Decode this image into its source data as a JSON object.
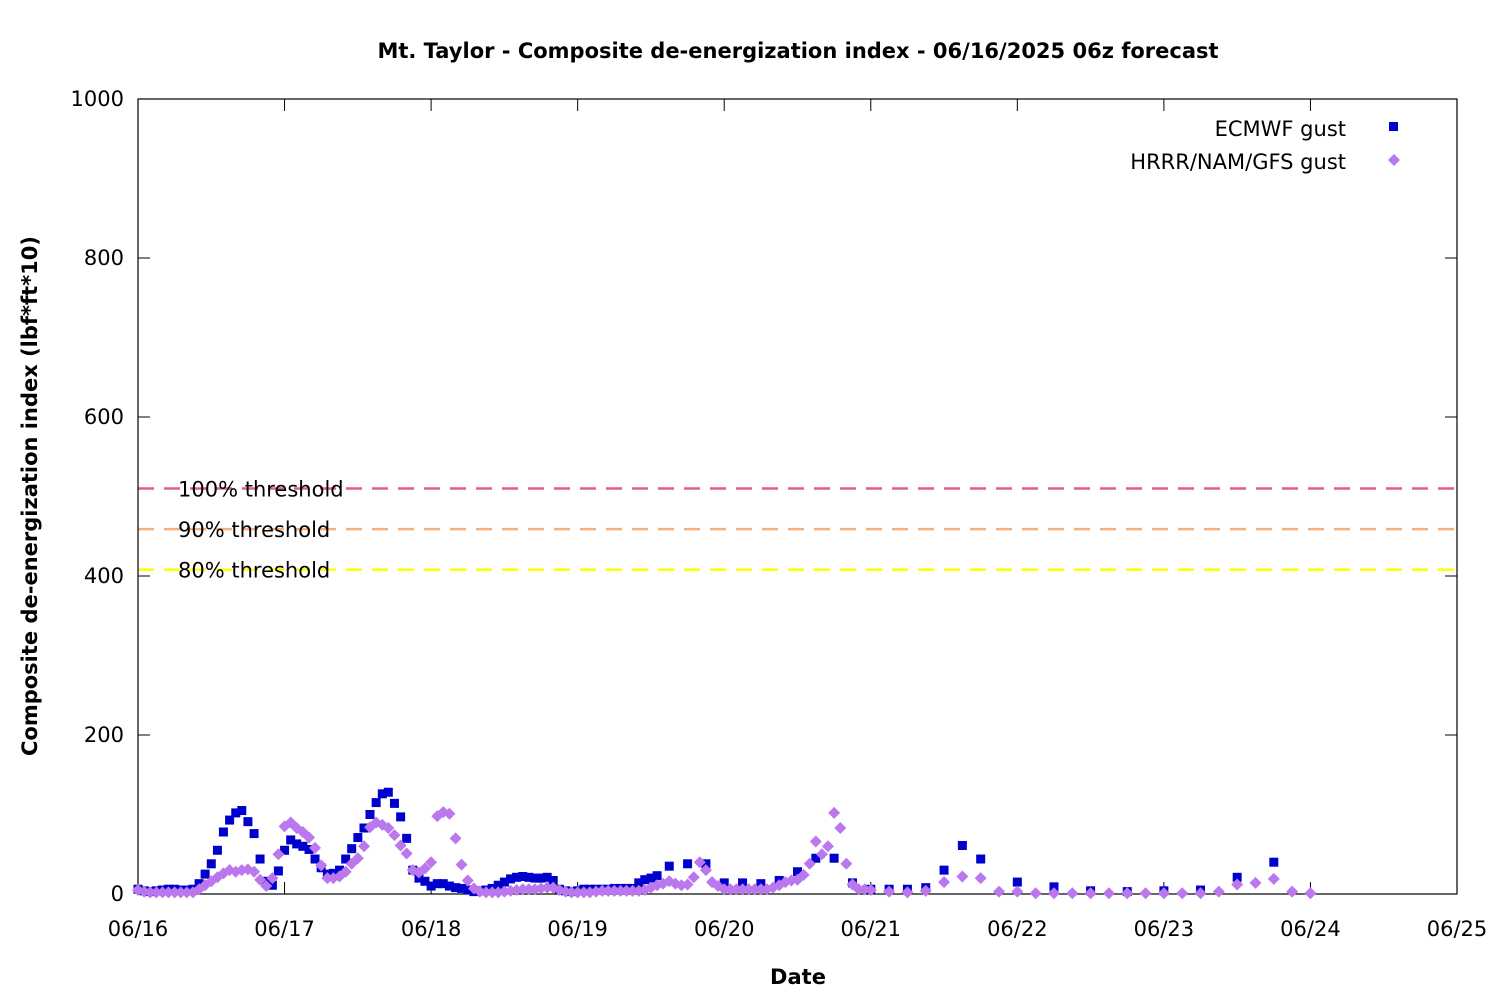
{
  "chart_data": {
    "type": "scatter",
    "title": "Mt. Taylor - Composite de-energization index - 06/16/2025 06z forecast",
    "xlabel": "Date",
    "ylabel": "Composite de-energization index (lbf*ft*10)",
    "x_unit": "day",
    "xlim": [
      0,
      9
    ],
    "ylim": [
      0,
      1000
    ],
    "x_ticks": [
      {
        "value": 0,
        "label": "06/16"
      },
      {
        "value": 1,
        "label": "06/17"
      },
      {
        "value": 2,
        "label": "06/18"
      },
      {
        "value": 3,
        "label": "06/19"
      },
      {
        "value": 4,
        "label": "06/20"
      },
      {
        "value": 5,
        "label": "06/21"
      },
      {
        "value": 6,
        "label": "06/22"
      },
      {
        "value": 7,
        "label": "06/23"
      },
      {
        "value": 8,
        "label": "06/24"
      },
      {
        "value": 9,
        "label": "06/25"
      }
    ],
    "y_ticks": [
      0,
      200,
      400,
      600,
      800,
      1000
    ],
    "grid": false,
    "legend_position": "top-right",
    "thresholds": [
      {
        "name": "100% threshold",
        "value": 510,
        "color": "#e06080"
      },
      {
        "name": "90% threshold",
        "value": 459,
        "color": "#f4b080"
      },
      {
        "name": "80% threshold",
        "value": 408,
        "color": "#ffff00"
      }
    ],
    "series": [
      {
        "name": "ECMWF gust",
        "marker": "square",
        "color": "#0000cc",
        "points": [
          [
            0.0,
            6
          ],
          [
            0.042,
            4
          ],
          [
            0.083,
            3
          ],
          [
            0.125,
            4
          ],
          [
            0.167,
            5
          ],
          [
            0.208,
            6
          ],
          [
            0.25,
            6
          ],
          [
            0.292,
            5
          ],
          [
            0.333,
            5
          ],
          [
            0.375,
            6
          ],
          [
            0.417,
            13
          ],
          [
            0.458,
            25
          ],
          [
            0.5,
            38
          ],
          [
            0.542,
            55
          ],
          [
            0.583,
            78
          ],
          [
            0.625,
            93
          ],
          [
            0.667,
            102
          ],
          [
            0.708,
            105
          ],
          [
            0.75,
            91
          ],
          [
            0.792,
            76
          ],
          [
            0.833,
            44
          ],
          [
            0.875,
            16
          ],
          [
            0.917,
            11
          ],
          [
            0.958,
            29
          ],
          [
            1.0,
            55
          ],
          [
            1.042,
            68
          ],
          [
            1.083,
            63
          ],
          [
            1.125,
            60
          ],
          [
            1.167,
            56
          ],
          [
            1.208,
            44
          ],
          [
            1.25,
            33
          ],
          [
            1.292,
            25
          ],
          [
            1.333,
            26
          ],
          [
            1.375,
            30
          ],
          [
            1.417,
            44
          ],
          [
            1.458,
            57
          ],
          [
            1.5,
            71
          ],
          [
            1.542,
            83
          ],
          [
            1.583,
            100
          ],
          [
            1.625,
            115
          ],
          [
            1.667,
            126
          ],
          [
            1.708,
            128
          ],
          [
            1.75,
            114
          ],
          [
            1.792,
            97
          ],
          [
            1.833,
            70
          ],
          [
            1.875,
            30
          ],
          [
            1.917,
            20
          ],
          [
            1.958,
            16
          ],
          [
            2.0,
            10
          ],
          [
            2.042,
            13
          ],
          [
            2.083,
            13
          ],
          [
            2.125,
            10
          ],
          [
            2.167,
            8
          ],
          [
            2.208,
            7
          ],
          [
            2.25,
            5
          ],
          [
            2.292,
            3
          ],
          [
            2.333,
            4
          ],
          [
            2.375,
            5
          ],
          [
            2.417,
            7
          ],
          [
            2.458,
            11
          ],
          [
            2.5,
            15
          ],
          [
            2.542,
            19
          ],
          [
            2.583,
            21
          ],
          [
            2.625,
            22
          ],
          [
            2.667,
            21
          ],
          [
            2.708,
            20
          ],
          [
            2.75,
            20
          ],
          [
            2.792,
            21
          ],
          [
            2.833,
            17
          ],
          [
            2.875,
            6
          ],
          [
            2.917,
            4
          ],
          [
            2.958,
            3
          ],
          [
            3.0,
            4
          ],
          [
            3.042,
            6
          ],
          [
            3.083,
            6
          ],
          [
            3.125,
            6
          ],
          [
            3.167,
            6
          ],
          [
            3.208,
            6
          ],
          [
            3.25,
            7
          ],
          [
            3.292,
            7
          ],
          [
            3.333,
            7
          ],
          [
            3.375,
            7
          ],
          [
            3.417,
            14
          ],
          [
            3.458,
            18
          ],
          [
            3.5,
            20
          ],
          [
            3.542,
            23
          ],
          [
            3.625,
            35
          ],
          [
            3.75,
            38
          ],
          [
            3.875,
            38
          ],
          [
            4.0,
            14
          ],
          [
            4.125,
            14
          ],
          [
            4.25,
            13
          ],
          [
            4.375,
            17
          ],
          [
            4.5,
            28
          ],
          [
            4.625,
            45
          ],
          [
            4.75,
            45
          ],
          [
            4.875,
            14
          ],
          [
            5.0,
            6
          ],
          [
            5.125,
            6
          ],
          [
            5.25,
            6
          ],
          [
            5.375,
            8
          ],
          [
            5.5,
            30
          ],
          [
            5.625,
            61
          ],
          [
            5.75,
            44
          ],
          [
            6.0,
            15
          ],
          [
            6.25,
            9
          ],
          [
            6.5,
            4
          ],
          [
            6.75,
            3
          ],
          [
            7.0,
            4
          ],
          [
            7.25,
            5
          ],
          [
            7.5,
            21
          ],
          [
            7.75,
            40
          ]
        ]
      },
      {
        "name": "HRRR/NAM/GFS gust",
        "marker": "diamond",
        "color": "#bb77ee",
        "points": [
          [
            0.0,
            5
          ],
          [
            0.042,
            3
          ],
          [
            0.083,
            2
          ],
          [
            0.125,
            2
          ],
          [
            0.167,
            2
          ],
          [
            0.208,
            2
          ],
          [
            0.25,
            2
          ],
          [
            0.292,
            2
          ],
          [
            0.333,
            2
          ],
          [
            0.375,
            2
          ],
          [
            0.417,
            6
          ],
          [
            0.458,
            11
          ],
          [
            0.5,
            16
          ],
          [
            0.542,
            21
          ],
          [
            0.583,
            26
          ],
          [
            0.625,
            30
          ],
          [
            0.667,
            28
          ],
          [
            0.708,
            30
          ],
          [
            0.75,
            31
          ],
          [
            0.792,
            28
          ],
          [
            0.833,
            18
          ],
          [
            0.875,
            10
          ],
          [
            0.917,
            20
          ],
          [
            0.958,
            50
          ],
          [
            1.0,
            85
          ],
          [
            1.042,
            90
          ],
          [
            1.083,
            83
          ],
          [
            1.125,
            78
          ],
          [
            1.167,
            71
          ],
          [
            1.208,
            58
          ],
          [
            1.25,
            36
          ],
          [
            1.292,
            20
          ],
          [
            1.333,
            20
          ],
          [
            1.375,
            22
          ],
          [
            1.417,
            28
          ],
          [
            1.458,
            38
          ],
          [
            1.5,
            45
          ],
          [
            1.542,
            60
          ],
          [
            1.583,
            84
          ],
          [
            1.625,
            90
          ],
          [
            1.667,
            87
          ],
          [
            1.708,
            83
          ],
          [
            1.75,
            74
          ],
          [
            1.792,
            61
          ],
          [
            1.833,
            51
          ],
          [
            1.875,
            30
          ],
          [
            1.917,
            27
          ],
          [
            1.958,
            32
          ],
          [
            2.0,
            40
          ],
          [
            2.042,
            98
          ],
          [
            2.083,
            103
          ],
          [
            2.125,
            101
          ],
          [
            2.167,
            70
          ],
          [
            2.208,
            37
          ],
          [
            2.25,
            17
          ],
          [
            2.292,
            7
          ],
          [
            2.333,
            3
          ],
          [
            2.375,
            2
          ],
          [
            2.417,
            2
          ],
          [
            2.458,
            2
          ],
          [
            2.5,
            3
          ],
          [
            2.542,
            4
          ],
          [
            2.583,
            5
          ],
          [
            2.625,
            6
          ],
          [
            2.667,
            6
          ],
          [
            2.708,
            6
          ],
          [
            2.75,
            7
          ],
          [
            2.792,
            8
          ],
          [
            2.833,
            8
          ],
          [
            2.875,
            5
          ],
          [
            2.917,
            3
          ],
          [
            2.958,
            2
          ],
          [
            3.0,
            2
          ],
          [
            3.042,
            2
          ],
          [
            3.083,
            2
          ],
          [
            3.125,
            3
          ],
          [
            3.167,
            4
          ],
          [
            3.208,
            4
          ],
          [
            3.25,
            4
          ],
          [
            3.292,
            4
          ],
          [
            3.333,
            4
          ],
          [
            3.375,
            4
          ],
          [
            3.417,
            4
          ],
          [
            3.458,
            5
          ],
          [
            3.5,
            8
          ],
          [
            3.542,
            11
          ],
          [
            3.583,
            13
          ],
          [
            3.625,
            16
          ],
          [
            3.667,
            13
          ],
          [
            3.708,
            11
          ],
          [
            3.75,
            12
          ],
          [
            3.792,
            21
          ],
          [
            3.833,
            40
          ],
          [
            3.875,
            30
          ],
          [
            3.917,
            15
          ],
          [
            3.958,
            10
          ],
          [
            4.0,
            6
          ],
          [
            4.042,
            6
          ],
          [
            4.083,
            6
          ],
          [
            4.125,
            6
          ],
          [
            4.167,
            6
          ],
          [
            4.208,
            6
          ],
          [
            4.25,
            6
          ],
          [
            4.292,
            6
          ],
          [
            4.333,
            8
          ],
          [
            4.375,
            11
          ],
          [
            4.417,
            15
          ],
          [
            4.458,
            17
          ],
          [
            4.5,
            18
          ],
          [
            4.542,
            24
          ],
          [
            4.583,
            38
          ],
          [
            4.625,
            66
          ],
          [
            4.667,
            50
          ],
          [
            4.708,
            60
          ],
          [
            4.75,
            102
          ],
          [
            4.792,
            83
          ],
          [
            4.833,
            38
          ],
          [
            4.875,
            12
          ],
          [
            4.917,
            6
          ],
          [
            4.958,
            6
          ],
          [
            5.0,
            5
          ],
          [
            5.125,
            3
          ],
          [
            5.25,
            2
          ],
          [
            5.375,
            4
          ],
          [
            5.5,
            15
          ],
          [
            5.625,
            22
          ],
          [
            5.75,
            20
          ],
          [
            5.875,
            3
          ],
          [
            6.0,
            3
          ],
          [
            6.125,
            1
          ],
          [
            6.25,
            1
          ],
          [
            6.375,
            1
          ],
          [
            6.5,
            1
          ],
          [
            6.625,
            1
          ],
          [
            6.75,
            1
          ],
          [
            6.875,
            1
          ],
          [
            7.0,
            1
          ],
          [
            7.125,
            1
          ],
          [
            7.25,
            1
          ],
          [
            7.375,
            3
          ],
          [
            7.5,
            12
          ],
          [
            7.625,
            14
          ],
          [
            7.75,
            19
          ],
          [
            7.875,
            3
          ],
          [
            8.0,
            1
          ]
        ]
      }
    ]
  }
}
